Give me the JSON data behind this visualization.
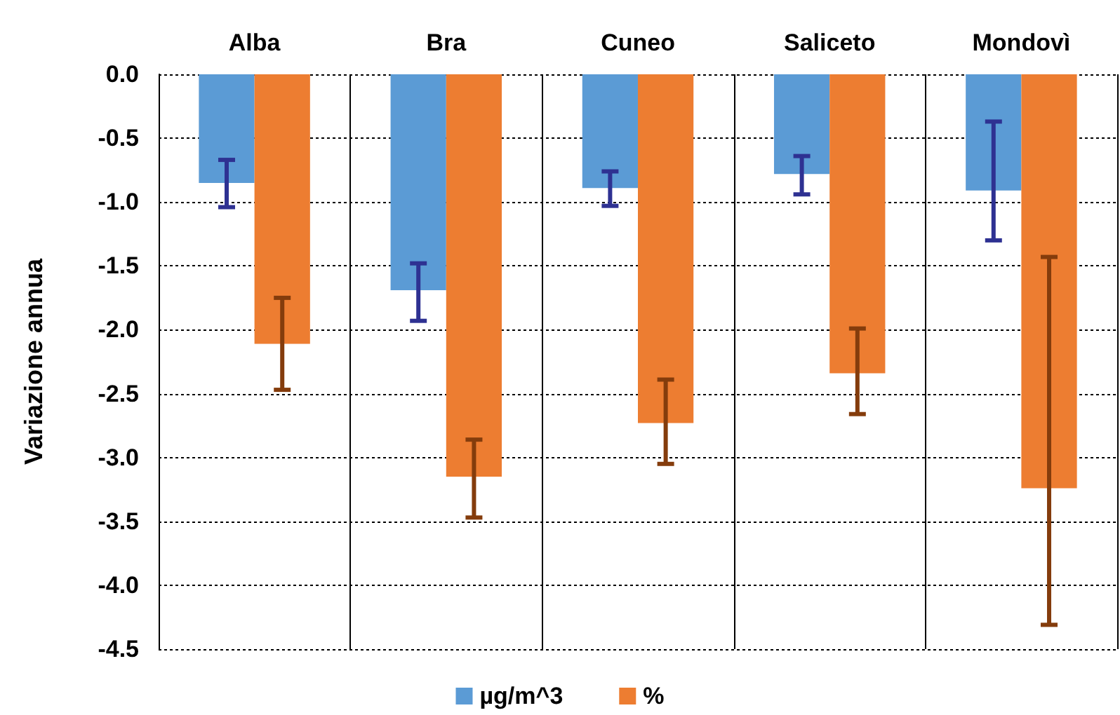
{
  "chart_data": {
    "type": "bar",
    "ylabel": "Variazione annua",
    "categories": [
      "Alba",
      "Bra",
      "Cuneo",
      "Saliceto",
      "Mondovì"
    ],
    "series": [
      {
        "name": "µg/m^3",
        "color": "#5b9bd5",
        "values": [
          -0.85,
          -1.69,
          -0.89,
          -0.78,
          -0.91
        ],
        "errors": [
          [
            -1.04,
            -0.67
          ],
          [
            -1.93,
            -1.48
          ],
          [
            -1.03,
            -0.76
          ],
          [
            -0.94,
            -0.64
          ],
          [
            -1.3,
            -0.37
          ]
        ]
      },
      {
        "name": "%",
        "color": "#ed7d31",
        "values": [
          -2.11,
          -3.15,
          -2.73,
          -2.34,
          -3.24
        ],
        "errors": [
          [
            -2.47,
            -1.75
          ],
          [
            -3.47,
            -2.86
          ],
          [
            -3.05,
            -2.39
          ],
          [
            -2.66,
            -1.99
          ],
          [
            -4.31,
            -1.43
          ]
        ]
      }
    ],
    "ylim": [
      -4.5,
      0
    ],
    "yticks": [
      {
        "value": 0,
        "label": "0.0"
      },
      {
        "value": -0.5,
        "label": "-0.5"
      },
      {
        "value": -1,
        "label": "-1.0"
      },
      {
        "value": -1.5,
        "label": "-1.5"
      },
      {
        "value": -2,
        "label": "-2.0"
      },
      {
        "value": -2.5,
        "label": "-2.5"
      },
      {
        "value": -3,
        "label": "-3.0"
      },
      {
        "value": -3.5,
        "label": "-3.5"
      },
      {
        "value": -4,
        "label": "-4.0"
      },
      {
        "value": -4.5,
        "label": "-4.5"
      }
    ],
    "grid": true,
    "legend": "bottom"
  }
}
